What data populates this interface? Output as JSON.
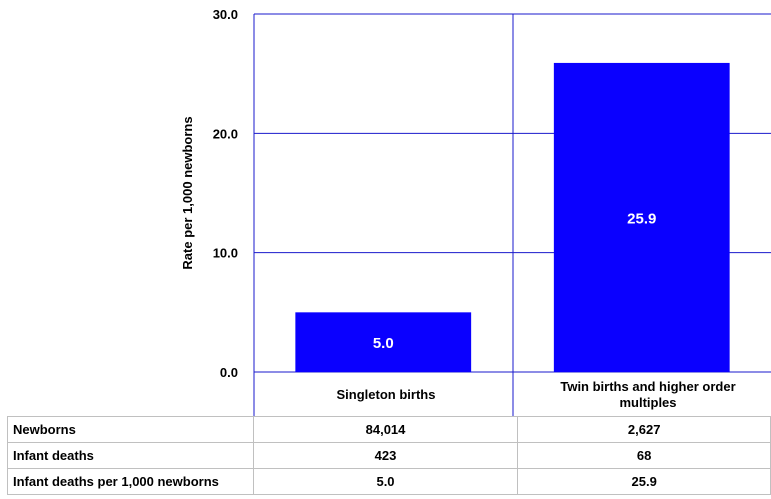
{
  "chart_data": {
    "type": "bar",
    "title": "",
    "xlabel": "",
    "ylabel": "Rate per 1,000 newborns",
    "ylim": [
      0,
      30
    ],
    "yticks": [
      "0.0",
      "10.0",
      "20.0",
      "30.0"
    ],
    "grid": true,
    "categories": [
      "Singleton births",
      "Twin births and higher order multiples"
    ],
    "values": [
      5.0,
      25.9
    ],
    "value_labels": [
      "5.0",
      "25.9"
    ],
    "bar_color": "#0a00ff",
    "grid_color": "#1a1acc"
  },
  "table": {
    "rows": [
      {
        "label": "Newborns",
        "values": [
          "84,014",
          "2,627"
        ]
      },
      {
        "label": "Infant deaths",
        "values": [
          "423",
          "68"
        ]
      },
      {
        "label": "Infant deaths per  1,000 newborns",
        "values": [
          "5.0",
          "25.9"
        ]
      }
    ]
  }
}
